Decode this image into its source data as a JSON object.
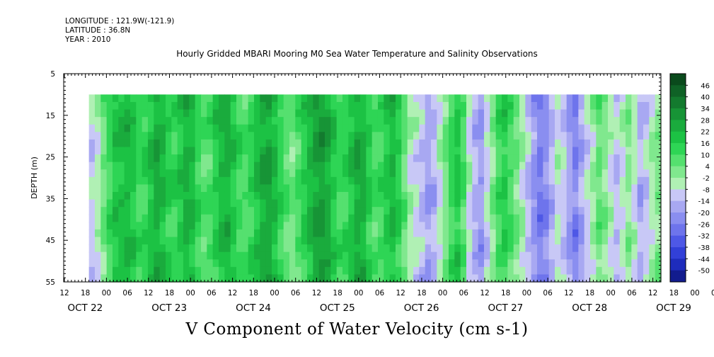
{
  "meta": {
    "longitude": "LONGITUDE : 121.9W(-121.9)",
    "latitude": "LATITUDE : 36.8N",
    "year": "YEAR : 2010"
  },
  "chart_data": {
    "type": "heatmap",
    "title": "Hourly Gridded MBARI Mooring M0 Sea Water Temperature and Salinity Observations",
    "subtitle": "V Component of Water Velocity (cm s-1)",
    "ylabel": "DEPTH (m)",
    "ylim": [
      55,
      5
    ],
    "y_ticks": [
      5,
      15,
      25,
      35,
      45,
      55
    ],
    "x_hour_ticks": [
      "12",
      "18",
      "00",
      "06",
      "12",
      "18",
      "00",
      "06",
      "12",
      "18",
      "00",
      "06",
      "12",
      "18",
      "00",
      "06",
      "12",
      "18",
      "00",
      "06",
      "12",
      "18",
      "00",
      "06",
      "12",
      "18",
      "00",
      "06",
      "12",
      "18",
      "00",
      "06",
      "12"
    ],
    "x_date_labels": [
      "OCT 22",
      "OCT 23",
      "OCT 24",
      "OCT 25",
      "OCT 26",
      "OCT 27",
      "OCT 28",
      "OCT 29"
    ],
    "colorbar": {
      "labels": [
        "46",
        "40",
        "34",
        "28",
        "22",
        "16",
        "10",
        "4",
        "-2",
        "-8",
        "-14",
        "-20",
        "-26",
        "-32",
        "-38",
        "-44",
        "-50"
      ],
      "levels": [
        52,
        46,
        40,
        34,
        28,
        22,
        16,
        10,
        4,
        -2,
        -8,
        -14,
        -20,
        -26,
        -32,
        -38,
        -44,
        -50
      ],
      "colors": [
        "#0a4a1c",
        "#0f6226",
        "#137a2e",
        "#179436",
        "#1aab3d",
        "#1cc244",
        "#2ed555",
        "#55e06f",
        "#80e88e",
        "#b0f0b4",
        "#c8c8f6",
        "#a8a8f2",
        "#8a8ef0",
        "#6e74ec",
        "#4e58e6",
        "#3240d8",
        "#1e2cbc",
        "#121c8e"
      ]
    },
    "data_start_depth": 10,
    "data_start_time": "OCT 21 19:00",
    "column_values": [
      -10,
      -4,
      4,
      12,
      18,
      20,
      22,
      18,
      12,
      14,
      20,
      26,
      22,
      16,
      14,
      18,
      24,
      22,
      14,
      8,
      10,
      16,
      22,
      24,
      18,
      12,
      10,
      14,
      20,
      26,
      28,
      22,
      14,
      8,
      4,
      10,
      16,
      22,
      28,
      30,
      26,
      18,
      12,
      14,
      20,
      26,
      24,
      16,
      10,
      12,
      18,
      22,
      16,
      6,
      -4,
      -8,
      -12,
      -18,
      -14,
      -6,
      4,
      12,
      18,
      10,
      -6,
      -14,
      -18,
      -8,
      2,
      12,
      16,
      10,
      4,
      -4,
      -12,
      -20,
      -26,
      -22,
      -14,
      -6,
      -10,
      -18,
      -24,
      -16,
      -8,
      -2,
      6,
      2,
      -6,
      -12,
      -6,
      0,
      -6,
      -14,
      -10,
      -4,
      2
    ]
  }
}
